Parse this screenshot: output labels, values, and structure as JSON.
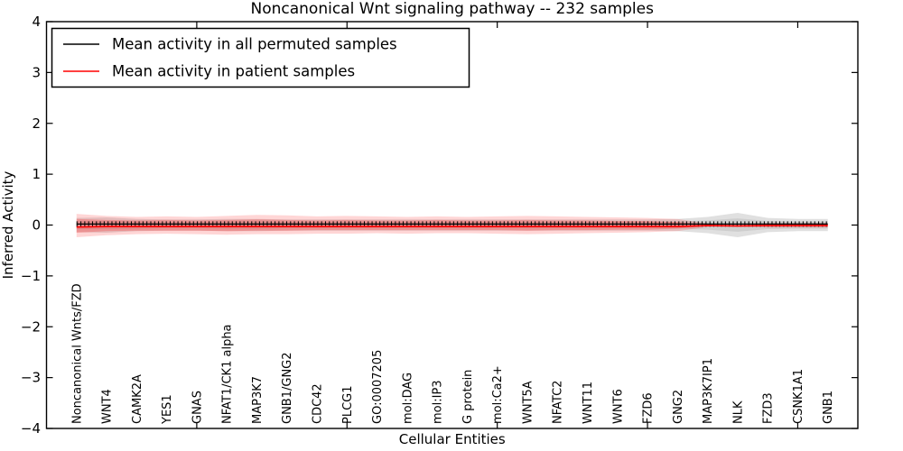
{
  "title": "Noncanonical Wnt signaling pathway -- 232 samples",
  "chart_data": {
    "type": "line",
    "title": "Noncanonical Wnt signaling pathway -- 232 samples",
    "xlabel": "Cellular Entities",
    "ylabel": "Inferred Activity",
    "ylim": [
      -4,
      4
    ],
    "xlim": [
      0,
      27
    ],
    "yticks": [
      -4,
      -3,
      -2,
      -1,
      0,
      1,
      2,
      3,
      4
    ],
    "xticks": [
      5,
      10,
      15,
      20,
      25
    ],
    "grid": false,
    "legend_position": "upper left",
    "legend": [
      {
        "label": "Mean activity in all permuted samples",
        "color": "#000000"
      },
      {
        "label": "Mean activity in patient samples",
        "color": "#ff0000"
      }
    ],
    "categories": [
      "Noncanonical Wnts/FZD",
      "WNT4",
      "CAMK2A",
      "YES1",
      "GNAS",
      "NFAT1/CK1 alpha",
      "MAP3K7",
      "GNB1/GNG2",
      "CDC42",
      "PLCG1",
      "GO:0007205",
      "mol:DAG",
      "mol:IP3",
      "G protein",
      "mol:Ca2+",
      "WNT5A",
      "NFATC2",
      "WNT11",
      "WNT6",
      "FZD6",
      "GNG2",
      "MAP3K7IP1",
      "NLK",
      "FZD3",
      "CSNK1A1",
      "GNB1"
    ],
    "series": [
      {
        "name": "Mean activity in all permuted samples",
        "color": "#000000",
        "values": [
          0.02,
          0.02,
          0.02,
          0.02,
          0.02,
          0.02,
          0.02,
          0.02,
          0.02,
          0.02,
          0.02,
          0.02,
          0.02,
          0.02,
          0.02,
          0.02,
          0.02,
          0.02,
          0.02,
          0.02,
          0.02,
          0.02,
          0.02,
          0.02,
          0.02,
          0.02
        ]
      },
      {
        "name": "Mean activity in patient samples",
        "color": "#ff0000",
        "values": [
          -0.04,
          -0.03,
          -0.03,
          -0.03,
          -0.03,
          -0.03,
          -0.03,
          -0.03,
          -0.03,
          -0.03,
          -0.03,
          -0.03,
          -0.03,
          -0.03,
          -0.03,
          -0.03,
          -0.03,
          -0.03,
          -0.03,
          -0.03,
          -0.03,
          -0.01,
          -0.02,
          -0.01,
          -0.01,
          -0.01
        ]
      }
    ],
    "bands": [
      {
        "name": "permuted-outer-band",
        "color": "#999999",
        "opacity": 0.3,
        "upper": [
          0.14,
          0.15,
          0.12,
          0.11,
          0.11,
          0.12,
          0.12,
          0.11,
          0.11,
          0.11,
          0.11,
          0.11,
          0.11,
          0.11,
          0.11,
          0.11,
          0.11,
          0.11,
          0.11,
          0.11,
          0.12,
          0.16,
          0.24,
          0.14,
          0.12,
          0.12
        ],
        "lower": [
          -0.14,
          -0.15,
          -0.12,
          -0.11,
          -0.11,
          -0.12,
          -0.12,
          -0.11,
          -0.11,
          -0.11,
          -0.11,
          -0.11,
          -0.11,
          -0.11,
          -0.11,
          -0.11,
          -0.11,
          -0.11,
          -0.11,
          -0.11,
          -0.12,
          -0.16,
          -0.24,
          -0.14,
          -0.12,
          -0.12
        ]
      },
      {
        "name": "permuted-inner-band",
        "color": "#999999",
        "opacity": 0.25,
        "upper": [
          0.08,
          0.08,
          0.07,
          0.06,
          0.06,
          0.07,
          0.07,
          0.06,
          0.06,
          0.06,
          0.06,
          0.06,
          0.06,
          0.06,
          0.06,
          0.06,
          0.06,
          0.06,
          0.06,
          0.06,
          0.07,
          0.09,
          0.13,
          0.08,
          0.07,
          0.07
        ],
        "lower": [
          -0.08,
          -0.08,
          -0.07,
          -0.06,
          -0.06,
          -0.07,
          -0.07,
          -0.06,
          -0.06,
          -0.06,
          -0.06,
          -0.06,
          -0.06,
          -0.06,
          -0.06,
          -0.06,
          -0.06,
          -0.06,
          -0.06,
          -0.06,
          -0.07,
          -0.09,
          -0.13,
          -0.08,
          -0.07,
          -0.07
        ]
      },
      {
        "name": "patient-outer-band",
        "color": "#ff0000",
        "opacity": 0.16,
        "upper": [
          0.22,
          0.18,
          0.16,
          0.17,
          0.16,
          0.18,
          0.2,
          0.19,
          0.17,
          0.18,
          0.17,
          0.16,
          0.17,
          0.16,
          0.17,
          0.18,
          0.17,
          0.16,
          0.15,
          0.14,
          0.12,
          0.03,
          0.02,
          0.04,
          0.04,
          0.04
        ],
        "lower": [
          -0.24,
          -0.2,
          -0.18,
          -0.17,
          -0.18,
          -0.19,
          -0.18,
          -0.18,
          -0.17,
          -0.17,
          -0.16,
          -0.17,
          -0.16,
          -0.16,
          -0.17,
          -0.18,
          -0.17,
          -0.16,
          -0.15,
          -0.14,
          -0.12,
          -0.04,
          -0.03,
          -0.05,
          -0.05,
          -0.05
        ]
      },
      {
        "name": "patient-inner-band",
        "color": "#ff0000",
        "opacity": 0.22,
        "upper": [
          0.12,
          0.1,
          0.09,
          0.1,
          0.09,
          0.1,
          0.11,
          0.1,
          0.09,
          0.1,
          0.09,
          0.09,
          0.1,
          0.09,
          0.09,
          0.1,
          0.09,
          0.09,
          0.08,
          0.08,
          0.06,
          0.01,
          0.01,
          0.02,
          0.02,
          0.02
        ],
        "lower": [
          -0.15,
          -0.12,
          -0.11,
          -0.11,
          -0.11,
          -0.12,
          -0.11,
          -0.11,
          -0.1,
          -0.1,
          -0.1,
          -0.1,
          -0.1,
          -0.1,
          -0.1,
          -0.11,
          -0.1,
          -0.1,
          -0.09,
          -0.09,
          -0.07,
          -0.02,
          -0.02,
          -0.03,
          -0.03,
          -0.03
        ]
      }
    ],
    "colors": {
      "frame": "#000000",
      "background": "#ffffff",
      "permuted_line": "#000000",
      "patient_line": "#ff0000"
    }
  }
}
